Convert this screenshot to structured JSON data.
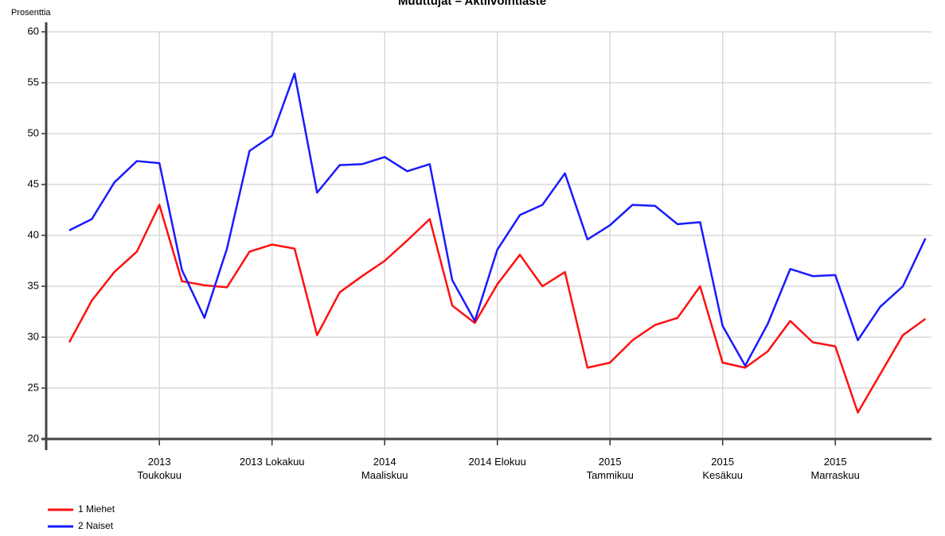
{
  "chart_data": {
    "type": "line",
    "title": "Muuttujat – Aktiivointiaste",
    "y_label": "Prosenttia",
    "categories": [
      null,
      null,
      null,
      null,
      "2013\nToukokuu",
      null,
      null,
      null,
      null,
      "2013 Lokakuu",
      null,
      null,
      null,
      null,
      "2014\nMaaliskuu",
      null,
      null,
      null,
      null,
      "2014 Elokuu",
      null,
      null,
      null,
      null,
      "2015\nTammikuu",
      null,
      null,
      null,
      null,
      "2015\nKesäkuu",
      null,
      null,
      null,
      null,
      "2015\nMarraskuu",
      null,
      null,
      null,
      null
    ],
    "series": [
      {
        "name": "1 Miehet",
        "color": "#ff1010",
        "values": [
          29.5,
          33.6,
          36.4,
          38.4,
          43.0,
          35.5,
          35.1,
          34.9,
          38.4,
          39.1,
          38.7,
          30.2,
          34.4,
          36.0,
          37.5,
          39.5,
          41.6,
          33.1,
          31.4,
          35.2,
          38.1,
          35.0,
          36.4,
          27.0,
          27.5,
          29.7,
          31.2,
          31.9,
          35.0,
          27.5,
          27.0,
          28.6,
          31.6,
          29.5,
          29.1,
          22.6,
          26.4,
          30.2,
          31.8
        ]
      },
      {
        "name": "2 Naiset",
        "color": "#1a1aff",
        "values": [
          40.5,
          41.6,
          45.2,
          47.3,
          47.1,
          36.6,
          31.9,
          38.7,
          48.3,
          49.8,
          55.9,
          44.2,
          46.9,
          47.0,
          47.7,
          46.3,
          47.0,
          35.6,
          31.6,
          38.6,
          42.0,
          43.0,
          46.1,
          39.6,
          41.0,
          43.0,
          42.9,
          41.1,
          41.3,
          31.1,
          27.2,
          31.3,
          36.7,
          36.0,
          36.1,
          29.7,
          33.0,
          35.0,
          39.7
        ]
      }
    ],
    "ylim": [
      20,
      60
    ],
    "yticks": [
      20,
      25,
      30,
      35,
      40,
      45,
      50,
      55,
      60
    ],
    "grid": true
  }
}
